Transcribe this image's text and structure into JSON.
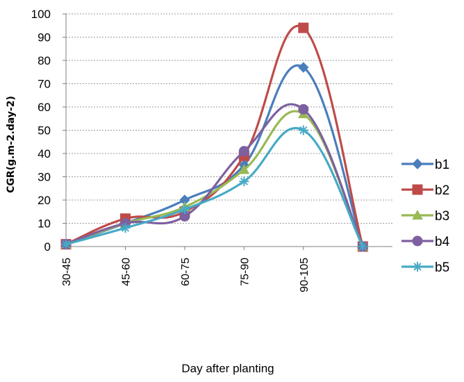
{
  "chart_data": {
    "type": "line",
    "title": "",
    "xlabel": "Day after planting",
    "ylabel": "CGR(g.m-2.day-2)",
    "categories": [
      "30-45",
      "45-60",
      "60-75",
      "75-90",
      "90-105",
      ""
    ],
    "ylim": [
      0,
      100
    ],
    "yticks": [
      "0",
      "10",
      "20",
      "30",
      "40",
      "50",
      "60",
      "70",
      "80",
      "90",
      "100"
    ],
    "grid": true,
    "legend_position": "right",
    "series": [
      {
        "name": "b1",
        "color": "#4a7ebb",
        "marker": "diamond",
        "values": [
          1,
          10,
          20,
          35,
          77,
          0
        ]
      },
      {
        "name": "b2",
        "color": "#be4b48",
        "marker": "square",
        "values": [
          1,
          12,
          15,
          39,
          94,
          0
        ]
      },
      {
        "name": "b3",
        "color": "#98b954",
        "marker": "triangle",
        "values": [
          1,
          10,
          17,
          33,
          57,
          0
        ]
      },
      {
        "name": "b4",
        "color": "#7d60a0",
        "marker": "circle",
        "values": [
          1,
          10,
          13,
          41,
          59,
          0
        ]
      },
      {
        "name": "b5",
        "color": "#46aac5",
        "marker": "star",
        "values": [
          1,
          8,
          16,
          28,
          50,
          0
        ]
      }
    ]
  }
}
